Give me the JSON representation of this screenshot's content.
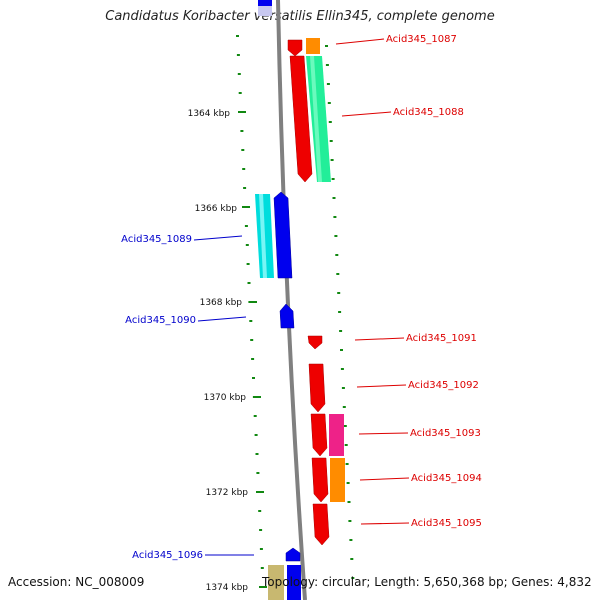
{
  "title": "Candidatus Koribacter versatilis Ellin345, complete genome",
  "accession": "Accession: NC_008009",
  "topology": "Topology: circular; Length: 5,650,368 bp; Genes: 4,832",
  "colors": {
    "backbone": "#808080",
    "forward_label": "#dd0000",
    "reverse_label": "#0000cc",
    "tick": "#118811",
    "dotted_track": "#118811"
  },
  "scale_ticks": [
    "1364 kbp",
    "1366 kbp",
    "1368 kbp",
    "1370 kbp",
    "1372 kbp",
    "1374 kbp"
  ],
  "genes": [
    {
      "label": "Acid345_1087",
      "strand": "forward"
    },
    {
      "label": "Acid345_1088",
      "strand": "forward"
    },
    {
      "label": "Acid345_1089",
      "strand": "reverse"
    },
    {
      "label": "Acid345_1090",
      "strand": "reverse"
    },
    {
      "label": "Acid345_1091",
      "strand": "forward"
    },
    {
      "label": "Acid345_1092",
      "strand": "forward"
    },
    {
      "label": "Acid345_1093",
      "strand": "forward"
    },
    {
      "label": "Acid345_1094",
      "strand": "forward"
    },
    {
      "label": "Acid345_1095",
      "strand": "forward"
    },
    {
      "label": "Acid345_1096",
      "strand": "reverse"
    }
  ]
}
